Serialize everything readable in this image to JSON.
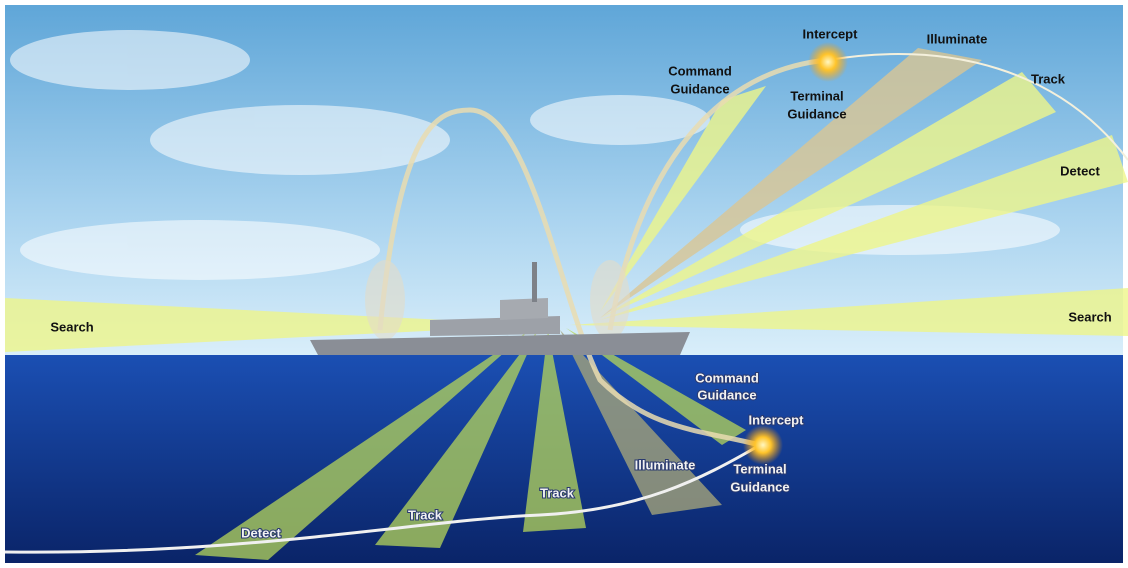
{
  "sky_labels": {
    "intercept": "Intercept",
    "illuminate": "Illuminate",
    "command_guidance": [
      "Command",
      "Guidance"
    ],
    "terminal_guidance": [
      "Terminal",
      "Guidance"
    ],
    "track": "Track",
    "detect": "Detect",
    "search_left": "Search",
    "search_right": "Search"
  },
  "sea_labels": {
    "command_guidance": [
      "Command",
      "Guidance"
    ],
    "intercept": "Intercept",
    "terminal_guidance": [
      "Terminal",
      "Guidance"
    ],
    "illuminate": "Illuminate",
    "track_near": "Track",
    "track_far": "Track",
    "detect": "Detect"
  }
}
